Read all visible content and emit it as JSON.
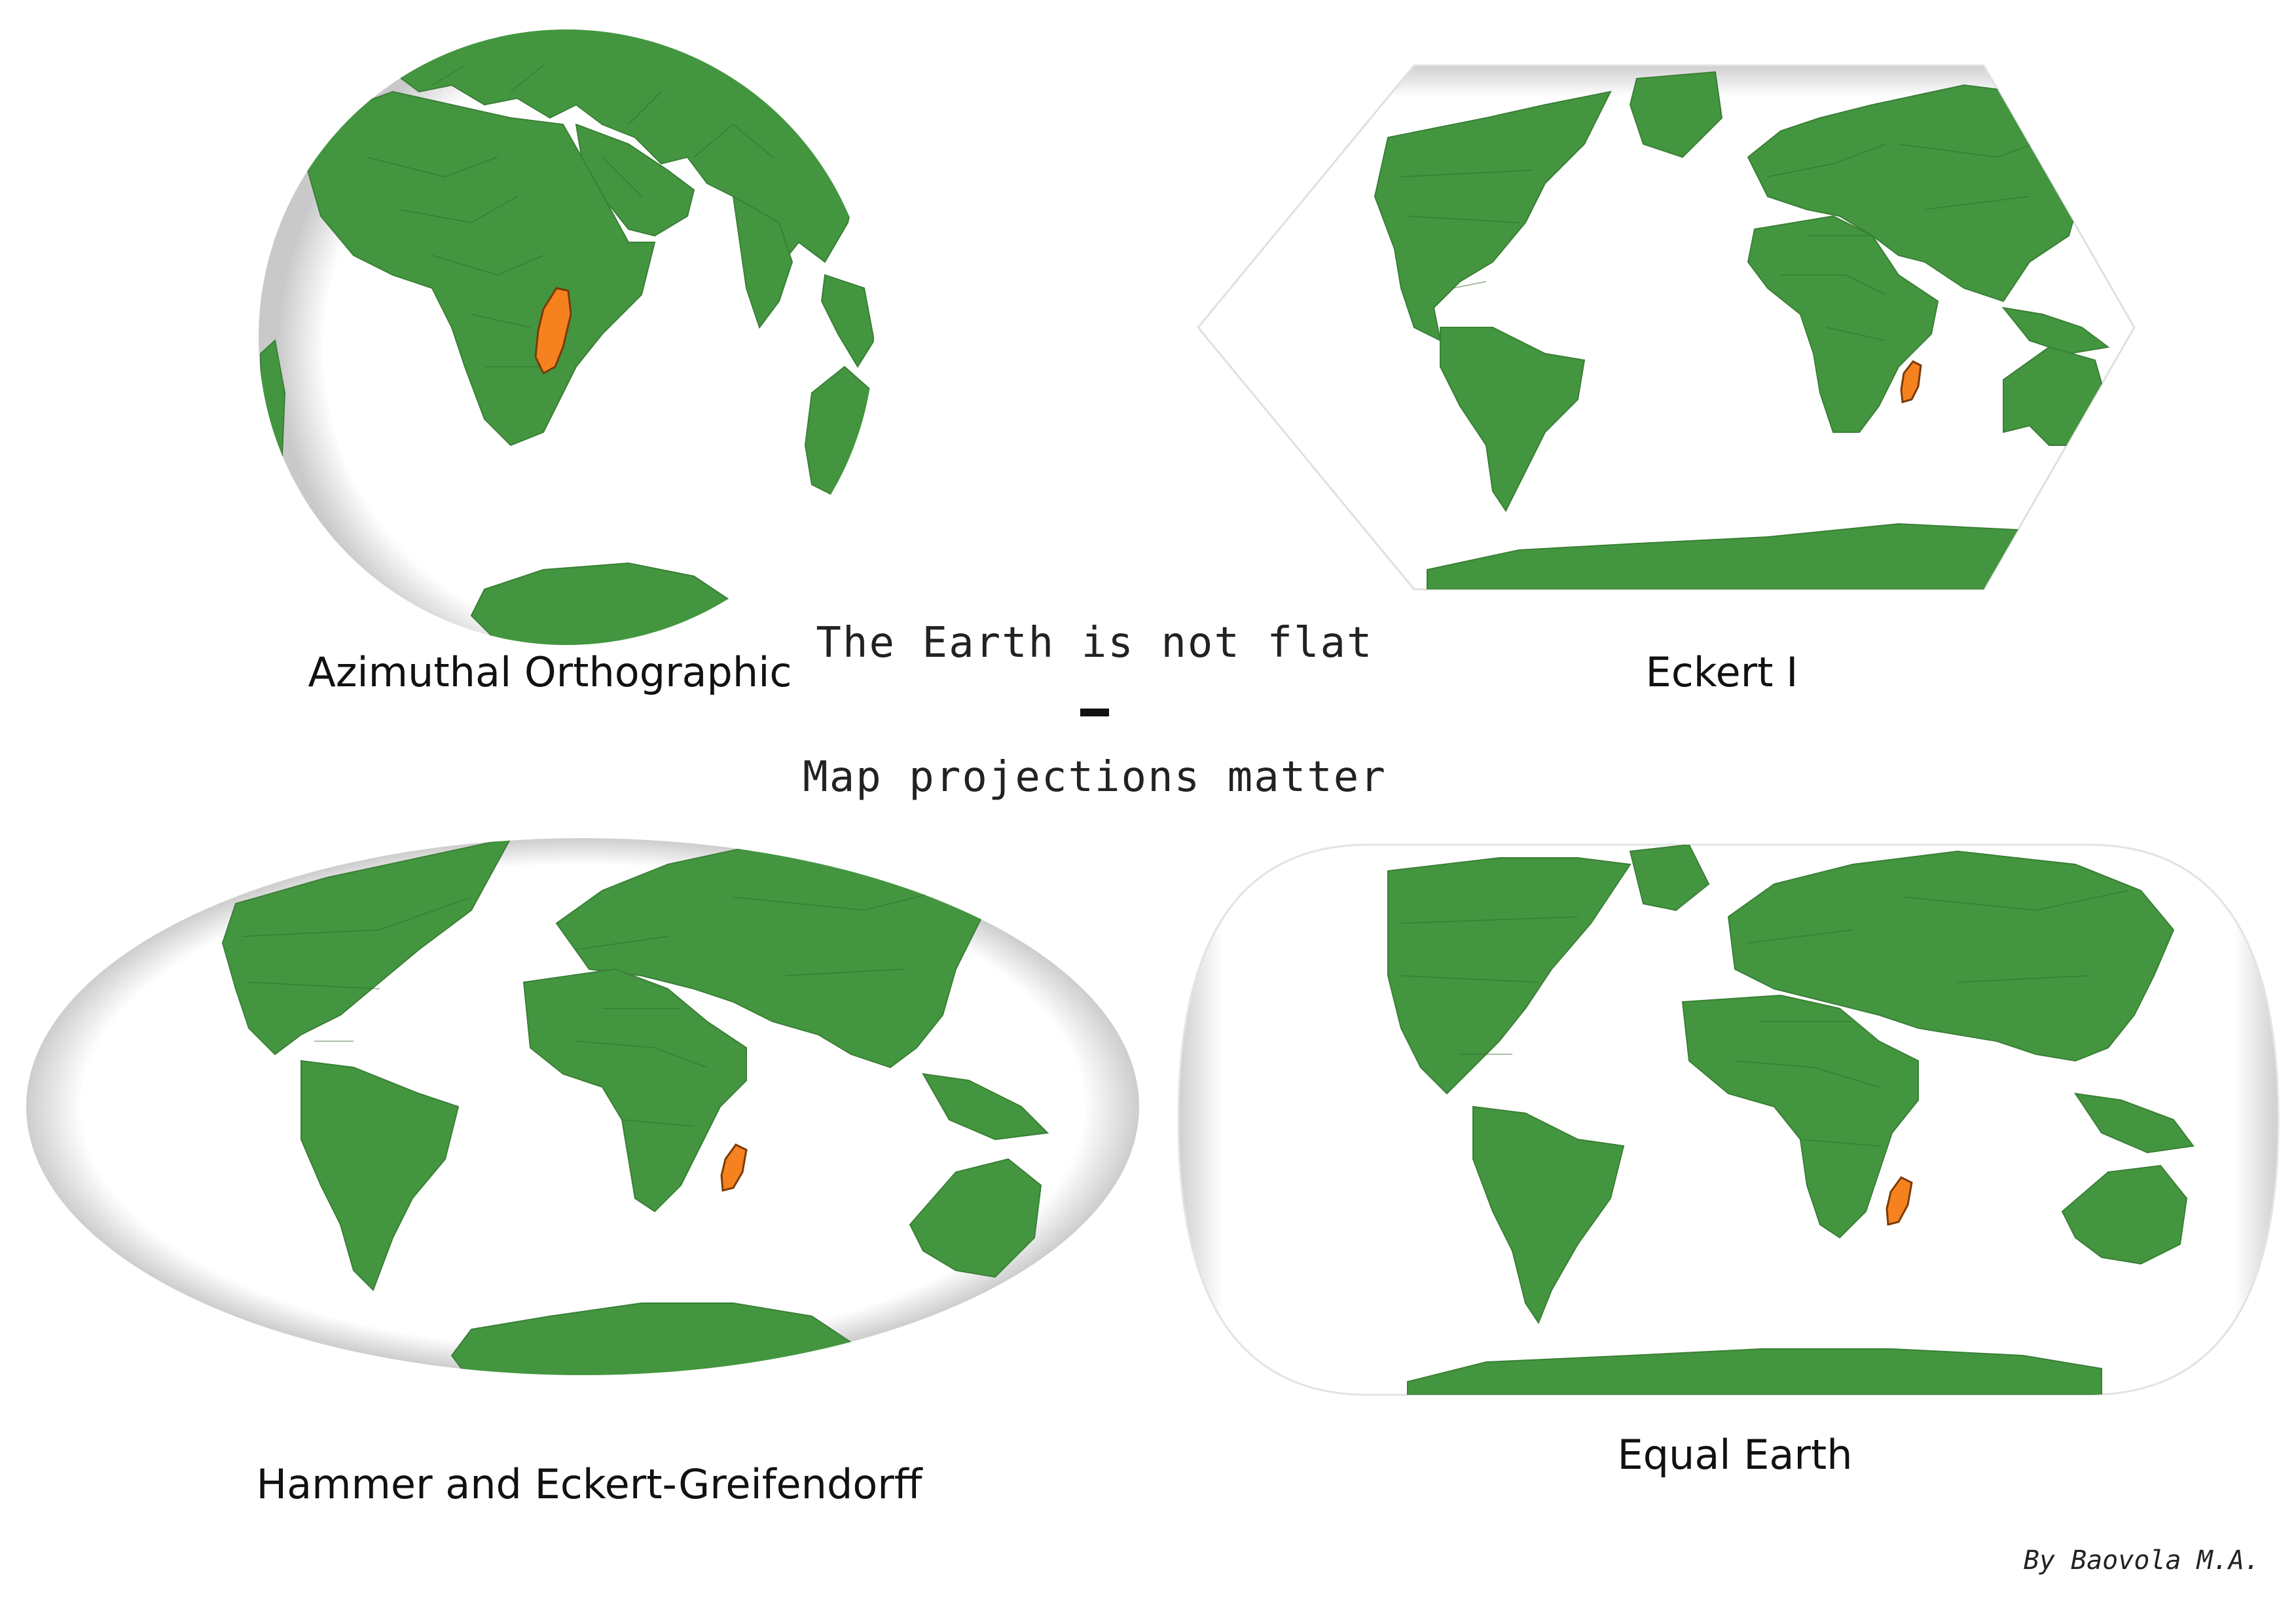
{
  "title": {
    "line1": "The Earth is not flat",
    "line2": "Map projections matter"
  },
  "credit": "By Baovola M.A.",
  "maps": [
    {
      "id": "orthographic",
      "label": "Azimuthal Orthographic"
    },
    {
      "id": "eckert1",
      "label": "Eckert I"
    },
    {
      "id": "hammer",
      "label": "Hammer and Eckert-Greifendorff"
    },
    {
      "id": "equalearth",
      "label": "Equal Earth"
    }
  ],
  "colors": {
    "land": "#43963f",
    "highlight": "#f6821f",
    "background": "#ffffff",
    "shadow": "#cfcfcf"
  },
  "highlighted_country": "Madagascar"
}
